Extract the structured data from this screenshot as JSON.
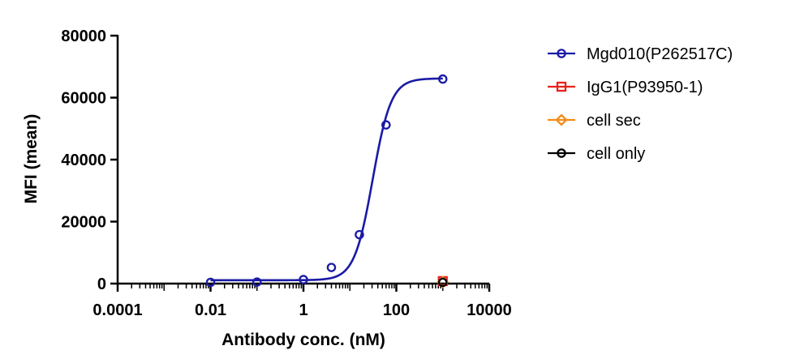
{
  "chart_data": {
    "type": "scatter",
    "xlabel": "Antibody conc. (nM)",
    "ylabel": "MFI (mean)",
    "xscale": "log",
    "xlim": [
      0.0001,
      10000
    ],
    "ylim": [
      0,
      80000
    ],
    "x_ticks": [
      {
        "value": 0.0001,
        "label": "0.0001"
      },
      {
        "value": 0.01,
        "label": "0.01"
      },
      {
        "value": 1,
        "label": "1"
      },
      {
        "value": 100,
        "label": "100"
      },
      {
        "value": 10000,
        "label": "10000"
      }
    ],
    "y_ticks": [
      {
        "value": 0,
        "label": "0"
      },
      {
        "value": 20000,
        "label": "20000"
      },
      {
        "value": 40000,
        "label": "40000"
      },
      {
        "value": 60000,
        "label": "60000"
      },
      {
        "value": 80000,
        "label": "80000"
      }
    ],
    "legend_position": "right",
    "fit_curve": {
      "series": "Mgd010(P262517C)",
      "model": "four-parameter logistic",
      "bottom": 1100,
      "top": 66200,
      "ec50": 31,
      "hill": 2.2
    },
    "series": [
      {
        "name": "Mgd010(P262517C)",
        "color": "#1a1aa6",
        "marker": "circle",
        "x": [
          0.01,
          0.1,
          1,
          4,
          16,
          60,
          1000
        ],
        "y": [
          400,
          500,
          1300,
          5200,
          15800,
          51200,
          66000
        ]
      },
      {
        "name": "IgG1(P93950-1)",
        "color": "#e8231b",
        "marker": "square",
        "x": [
          1000
        ],
        "y": [
          800
        ]
      },
      {
        "name": "cell sec",
        "color": "#f28c1c",
        "marker": "diamond",
        "x": [
          1000
        ],
        "y": [
          500
        ]
      },
      {
        "name": "cell only",
        "color": "#000000",
        "marker": "circle",
        "x": [
          1000
        ],
        "y": [
          400
        ]
      }
    ]
  }
}
